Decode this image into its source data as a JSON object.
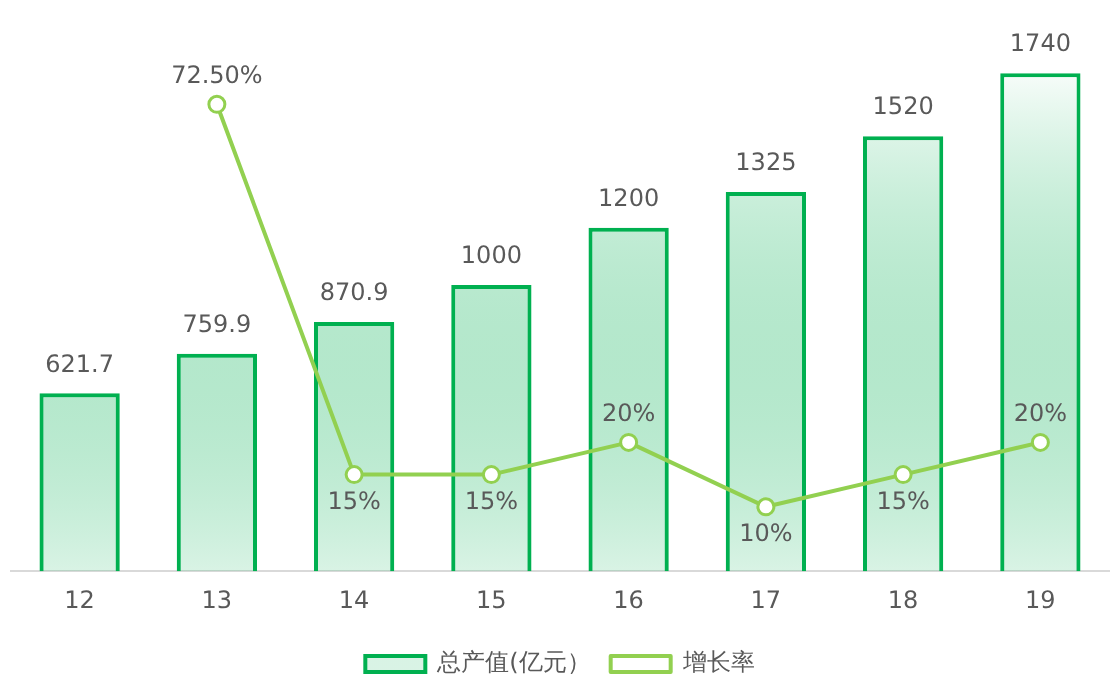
{
  "chart_data": {
    "type": "bar",
    "categories": [
      "12",
      "13",
      "14",
      "15",
      "16",
      "17",
      "18",
      "19"
    ],
    "series": [
      {
        "name": "总产值(亿元）",
        "color": "#00b050",
        "values": [
          621.7,
          759.9,
          870.9,
          1000,
          1200,
          1325,
          1520,
          1740
        ]
      },
      {
        "name": "增长率",
        "type": "line",
        "axis": "y2",
        "color": "#92d050",
        "values": [
          null,
          72.5,
          15,
          15,
          20,
          10,
          15,
          20
        ],
        "value_labels": [
          null,
          "72.50%",
          "15%",
          "15%",
          "20%",
          "10%",
          "15%",
          "20%"
        ]
      }
    ],
    "data_labels": true,
    "grid": false,
    "legend": "bottom",
    "tick_labels": "x",
    "marker": "circle"
  }
}
